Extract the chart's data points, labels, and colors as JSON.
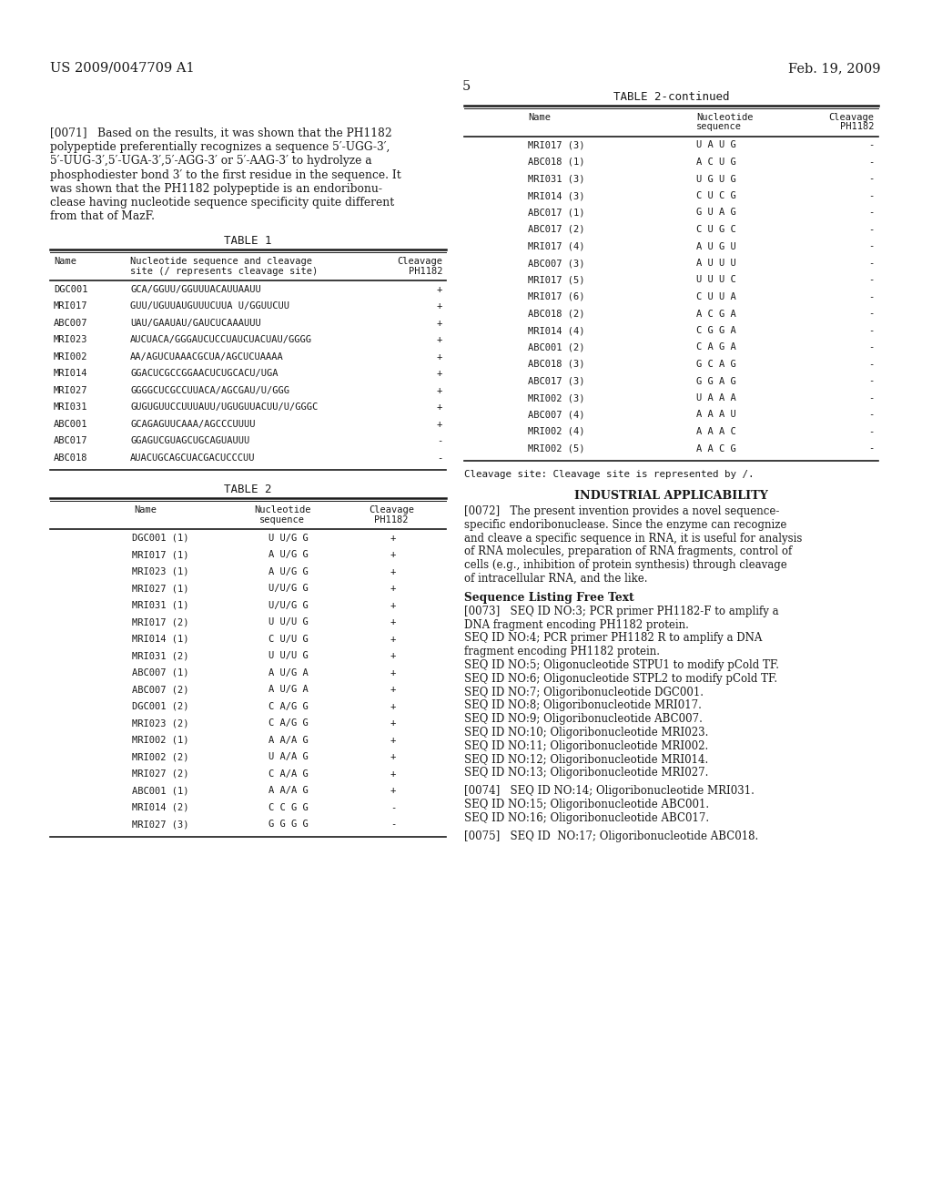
{
  "bg_color": "#ffffff",
  "header_left": "US 2009/0047709 A1",
  "header_right": "Feb. 19, 2009",
  "page_number": "5",
  "table1_title": "TABLE 1",
  "table1_rows": [
    [
      "DGC001",
      "GCA/GGUU/GGUUUACAUUAAUU",
      "+"
    ],
    [
      "MRI017",
      "GUU/UGUUAUGUUUCUUA U/GGUUCUU",
      "+"
    ],
    [
      "ABC007",
      "UAU/GAAUAU/GAUCUCAAAUUU",
      "+"
    ],
    [
      "MRI023",
      "AUCUACA/GGGAUCUCCUAUCUACUAU/GGGG",
      "+"
    ],
    [
      "MRI002",
      "AA/AGUCUAAACGCUA/AGCUCUAAAA",
      "+"
    ],
    [
      "MRI014",
      "GGACUCGCCGGAACUCUGCACU/UGA",
      "+"
    ],
    [
      "MRI027",
      "GGGGCUCGCCUUACA/AGCGAU/U/GGG",
      "+"
    ],
    [
      "MRI031",
      "GUGUGUUCCUUUAUU/UGUGUUACUU/U/GGGC",
      "+"
    ],
    [
      "ABC001",
      "GCAGAGUUCAAA/AGCCCUUUU",
      "+"
    ],
    [
      "ABC017",
      "GGAGUCGUAGCUGCAGUAUUU",
      "-"
    ],
    [
      "ABC018",
      "AUACUGCAGCUACGACUCCCUU",
      "-"
    ]
  ],
  "table2_title": "TABLE 2",
  "table2_rows": [
    [
      "DGC001 (1)",
      "U U/G G",
      "+"
    ],
    [
      "MRI017 (1)",
      "A U/G G",
      "+"
    ],
    [
      "MRI023 (1)",
      "A U/G G",
      "+"
    ],
    [
      "MRI027 (1)",
      "U/U/G G",
      "+"
    ],
    [
      "MRI031 (1)",
      "U/U/G G",
      "+"
    ],
    [
      "MRI017 (2)",
      "U U/U G",
      "+"
    ],
    [
      "MRI014 (1)",
      "C U/U G",
      "+"
    ],
    [
      "MRI031 (2)",
      "U U/U G",
      "+"
    ],
    [
      "ABC007 (1)",
      "A U/G A",
      "+"
    ],
    [
      "ABC007 (2)",
      "A U/G A",
      "+"
    ],
    [
      "DGC001 (2)",
      "C A/G G",
      "+"
    ],
    [
      "MRI023 (2)",
      "C A/G G",
      "+"
    ],
    [
      "MRI002 (1)",
      "A A/A G",
      "+"
    ],
    [
      "MRI002 (2)",
      "U A/A G",
      "+"
    ],
    [
      "MRI027 (2)",
      "C A/A G",
      "+"
    ],
    [
      "ABC001 (1)",
      "A A/A G",
      "+"
    ],
    [
      "MRI014 (2)",
      "C C G G",
      "-"
    ],
    [
      "MRI027 (3)",
      "G G G G",
      "-"
    ]
  ],
  "table2cont_title": "TABLE 2-continued",
  "table2cont_rows": [
    [
      "MRI017 (3)",
      "U A U G",
      "-"
    ],
    [
      "ABC018 (1)",
      "A C U G",
      "-"
    ],
    [
      "MRI031 (3)",
      "U G U G",
      "-"
    ],
    [
      "MRI014 (3)",
      "C U C G",
      "-"
    ],
    [
      "ABC017 (1)",
      "G U A G",
      "-"
    ],
    [
      "ABC017 (2)",
      "C U G C",
      "-"
    ],
    [
      "MRI017 (4)",
      "A U G U",
      "-"
    ],
    [
      "ABC007 (3)",
      "A U U U",
      "-"
    ],
    [
      "MRI017 (5)",
      "U U U C",
      "-"
    ],
    [
      "MRI017 (6)",
      "C U U A",
      "-"
    ],
    [
      "ABC018 (2)",
      "A C G A",
      "-"
    ],
    [
      "MRI014 (4)",
      "C G G A",
      "-"
    ],
    [
      "ABC001 (2)",
      "C A G A",
      "-"
    ],
    [
      "ABC018 (3)",
      "G C A G",
      "-"
    ],
    [
      "ABC017 (3)",
      "G G A G",
      "-"
    ],
    [
      "MRI002 (3)",
      "U A A A",
      "-"
    ],
    [
      "ABC007 (4)",
      "A A A U",
      "-"
    ],
    [
      "MRI002 (4)",
      "A A A C",
      "-"
    ],
    [
      "MRI002 (5)",
      "A A C G",
      "-"
    ]
  ],
  "cleavage_note": "Cleavage site: Cleavage site is represented by /.",
  "industrial_title": "INDUSTRIAL APPLICABILITY",
  "p71_lines": [
    "[0071]   Based on the results, it was shown that the PH1182",
    "polypeptide preferentially recognizes a sequence 5′-UGG-3′,",
    "5′-UUG-3′,5′-UGA-3′,5′-AGG-3′ or 5′-AAG-3′ to hydrolyze a",
    "phosphodiester bond 3′ to the first residue in the sequence. It",
    "was shown that the PH1182 polypeptide is an endoribonu-",
    "clease having nucleotide sequence specificity quite different",
    "from that of MazF."
  ],
  "p72_lines": [
    "[0072]   The present invention provides a novel sequence-",
    "specific endoribonuclease. Since the enzyme can recognize",
    "and cleave a specific sequence in RNA, it is useful for analysis",
    "of RNA molecules, preparation of RNA fragments, control of",
    "cells (e.g., inhibition of protein synthesis) through cleavage",
    "of intracellular RNA, and the like."
  ],
  "seq_listing_title": "Sequence Listing Free Text",
  "p73_lines": [
    "[0073]   SEQ ID NO:3; PCR primer PH1182-F to amplify a",
    "DNA fragment encoding PH1182 protein.",
    "SEQ ID NO:4; PCR primer PH1182 R to amplify a DNA",
    "fragment encoding PH1182 protein.",
    "SEQ ID NO:5; Oligonucleotide STPU1 to modify pCold TF.",
    "SEQ ID NO:6; Oligonucleotide STPL2 to modify pCold TF.",
    "SEQ ID NO:7; Oligoribonucleotide DGC001.",
    "SEQ ID NO:8; Oligoribonucleotide MRI017.",
    "SEQ ID NO:9; Oligoribonucleotide ABC007.",
    "SEQ ID NO:10; Oligoribonucleotide MRI023.",
    "SEQ ID NO:11; Oligoribonucleotide MRI002.",
    "SEQ ID NO:12; Oligoribonucleotide MRI014.",
    "SEQ ID NO:13; Oligoribonucleotide MRI027."
  ],
  "p74_lines": [
    "[0074]   SEQ ID NO:14; Oligoribonucleotide MRI031.",
    "SEQ ID NO:15; Oligoribonucleotide ABC001.",
    "SEQ ID NO:16; Oligoribonucleotide ABC017."
  ],
  "p75_line": "[0075]   SEQ ID  NO:17; Oligoribonucleotide ABC018."
}
